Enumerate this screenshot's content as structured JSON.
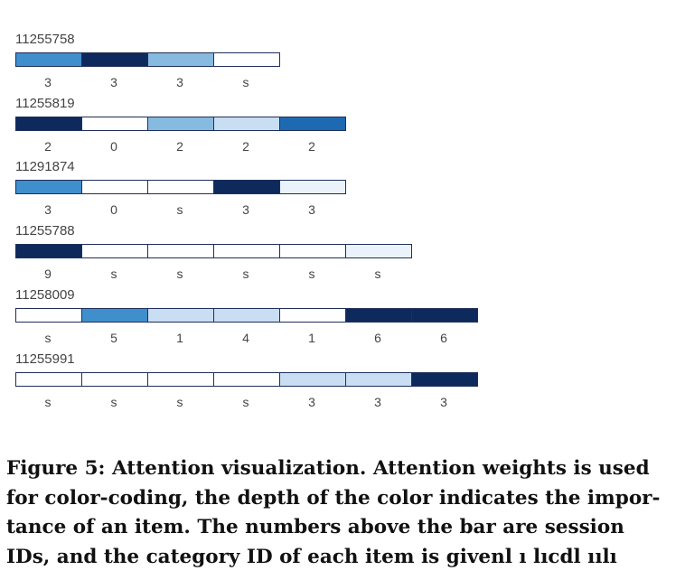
{
  "figure": {
    "colors": {
      "scale": [
        "#ffffff",
        "#eaf3fc",
        "#c9def2",
        "#86badf",
        "#3f8fcd",
        "#1d6ab2",
        "#0e2a5c"
      ],
      "border": "#1f2f5a"
    },
    "sessions": [
      {
        "id": "11255758",
        "items": [
          {
            "category": "3",
            "weight": 4
          },
          {
            "category": "3",
            "weight": 6
          },
          {
            "category": "3",
            "weight": 3
          },
          {
            "category": "s",
            "weight": 0
          }
        ]
      },
      {
        "id": "11255819",
        "items": [
          {
            "category": "2",
            "weight": 6
          },
          {
            "category": "0",
            "weight": 0
          },
          {
            "category": "2",
            "weight": 3
          },
          {
            "category": "2",
            "weight": 2
          },
          {
            "category": "2",
            "weight": 5
          }
        ]
      },
      {
        "id": "11291874",
        "items": [
          {
            "category": "3",
            "weight": 4
          },
          {
            "category": "0",
            "weight": 0
          },
          {
            "category": "s",
            "weight": 0
          },
          {
            "category": "3",
            "weight": 6
          },
          {
            "category": "3",
            "weight": 1
          }
        ]
      },
      {
        "id": "11255788",
        "items": [
          {
            "category": "9",
            "weight": 6
          },
          {
            "category": "s",
            "weight": 0
          },
          {
            "category": "s",
            "weight": 0
          },
          {
            "category": "s",
            "weight": 0
          },
          {
            "category": "s",
            "weight": 0
          },
          {
            "category": "s",
            "weight": 1
          }
        ]
      },
      {
        "id": "11258009",
        "items": [
          {
            "category": "s",
            "weight": 0
          },
          {
            "category": "5",
            "weight": 4
          },
          {
            "category": "1",
            "weight": 2
          },
          {
            "category": "4",
            "weight": 2
          },
          {
            "category": "1",
            "weight": 0
          },
          {
            "category": "6",
            "weight": 6
          },
          {
            "category": "6",
            "weight": 6
          }
        ]
      },
      {
        "id": "11255991",
        "items": [
          {
            "category": "s",
            "weight": 0
          },
          {
            "category": "s",
            "weight": 0
          },
          {
            "category": "s",
            "weight": 0
          },
          {
            "category": "s",
            "weight": 0
          },
          {
            "category": "3",
            "weight": 2
          },
          {
            "category": "3",
            "weight": 2
          },
          {
            "category": "3",
            "weight": 6
          }
        ]
      }
    ]
  },
  "caption": {
    "label": "Figure 5:",
    "text": " Attention visualization. Attention weights is used for color-coding, the depth of the color indicates the impor-tance of an item. The numbers above the bar are session IDs, and the category ID of each item is givenl ı lıcdl ıılı"
  }
}
